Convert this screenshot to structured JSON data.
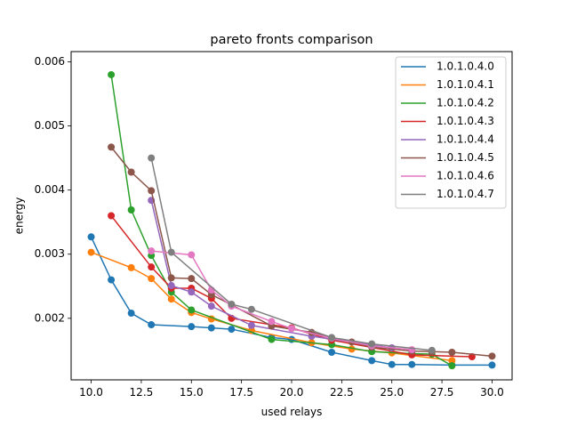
{
  "chart_data": {
    "type": "line",
    "title": "pareto fronts comparison",
    "xlabel": "used relays",
    "ylabel": "energy",
    "xlim": [
      9.0,
      31.0
    ],
    "ylim": [
      0.00104,
      0.00616
    ],
    "xticks": [
      10.0,
      12.5,
      15.0,
      17.5,
      20.0,
      22.5,
      25.0,
      27.5,
      30.0
    ],
    "xtick_labels": [
      "10.0",
      "12.5",
      "15.0",
      "17.5",
      "20.0",
      "22.5",
      "25.0",
      "27.5",
      "30.0"
    ],
    "yticks": [
      0.002,
      0.003,
      0.004,
      0.005,
      0.006
    ],
    "ytick_labels": [
      "0.002",
      "0.003",
      "0.004",
      "0.005",
      "0.006"
    ],
    "grid": false,
    "legend_position": "top-right",
    "markers": true,
    "series": [
      {
        "name": "1.0.1.0.4.0",
        "color": "#1f77b4",
        "x": [
          10,
          11,
          12,
          13,
          15,
          16,
          17,
          19,
          20,
          22,
          24,
          25,
          26,
          28,
          30
        ],
        "y": [
          0.00327,
          0.0026,
          0.00208,
          0.0019,
          0.00187,
          0.00185,
          0.00183,
          0.0017,
          0.00167,
          0.00147,
          0.00134,
          0.00128,
          0.00128,
          0.00127,
          0.00127
        ]
      },
      {
        "name": "1.0.1.0.4.1",
        "color": "#ff7f0e",
        "x": [
          10,
          12,
          13,
          14,
          15,
          16,
          18,
          21,
          23,
          25,
          28
        ],
        "y": [
          0.00303,
          0.00279,
          0.00262,
          0.0023,
          0.00209,
          0.00199,
          0.00181,
          0.00162,
          0.00152,
          0.00146,
          0.00134
        ]
      },
      {
        "name": "1.0.1.0.4.2",
        "color": "#2ca02c",
        "x": [
          11,
          12,
          13,
          14,
          15,
          19,
          22,
          24,
          26,
          27,
          28
        ],
        "y": [
          0.0058,
          0.00369,
          0.00298,
          0.00241,
          0.00213,
          0.00167,
          0.00159,
          0.00148,
          0.00145,
          0.00144,
          0.00126
        ]
      },
      {
        "name": "1.0.1.0.4.3",
        "color": "#d62728",
        "x": [
          11,
          13,
          14,
          15,
          16,
          17,
          20,
          22,
          26,
          29
        ],
        "y": [
          0.0036,
          0.0028,
          0.00247,
          0.00247,
          0.00231,
          0.002,
          0.00185,
          0.00166,
          0.00143,
          0.0014
        ]
      },
      {
        "name": "1.0.1.0.4.4",
        "color": "#9467bd",
        "x": [
          13,
          14,
          15,
          16,
          18,
          21,
          25
        ],
        "y": [
          0.00384,
          0.00251,
          0.00241,
          0.00219,
          0.00189,
          0.00172,
          0.00154
        ]
      },
      {
        "name": "1.0.1.0.4.5",
        "color": "#8c564b",
        "x": [
          11,
          12,
          13,
          14,
          15,
          16,
          17,
          19,
          21,
          23,
          24,
          26,
          27,
          28,
          30
        ],
        "y": [
          0.00467,
          0.00428,
          0.00399,
          0.00263,
          0.00262,
          0.00237,
          0.00221,
          0.00188,
          0.00178,
          0.00163,
          0.00155,
          0.00149,
          0.00148,
          0.00147,
          0.00141
        ]
      },
      {
        "name": "1.0.1.0.4.6",
        "color": "#e377c2",
        "x": [
          13,
          15,
          16,
          17,
          19,
          20,
          22,
          24,
          26
        ],
        "y": [
          0.00305,
          0.00299,
          0.00244,
          0.00219,
          0.00195,
          0.00184,
          0.00169,
          0.00157,
          0.00151
        ]
      },
      {
        "name": "1.0.1.0.4.7",
        "color": "#7f7f7f",
        "x": [
          13,
          14,
          17,
          18,
          22,
          24,
          27
        ],
        "y": [
          0.0045,
          0.00303,
          0.00222,
          0.00214,
          0.0017,
          0.0016,
          0.0015
        ]
      }
    ]
  }
}
